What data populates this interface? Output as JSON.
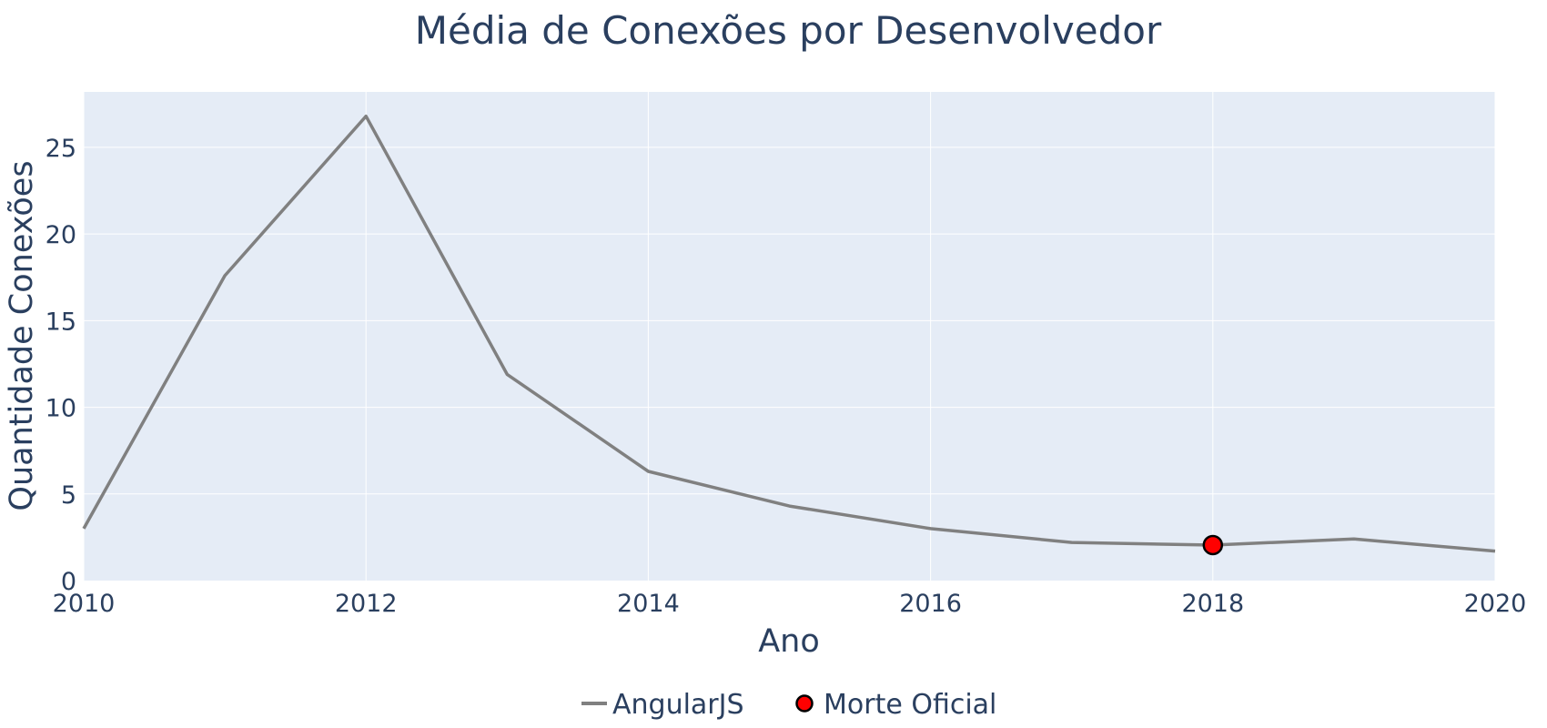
{
  "chart_data": {
    "type": "line",
    "title": "Média de Conexões por Desenvolvedor",
    "xlabel": "Ano",
    "ylabel": "Quantidade Conexões",
    "xlim": [
      2010,
      2020
    ],
    "ylim": [
      0,
      28.2
    ],
    "x_ticks": [
      2010,
      2012,
      2014,
      2016,
      2018,
      2020
    ],
    "y_ticks": [
      0,
      5,
      10,
      15,
      20,
      25
    ],
    "grid": true,
    "legend_position": "bottom-center",
    "series": [
      {
        "name": "AngularJS",
        "mode": "lines",
        "color": "#808080",
        "x": [
          2010,
          2011,
          2012,
          2013,
          2014,
          2015,
          2016,
          2017,
          2018,
          2019,
          2020
        ],
        "y": [
          3.0,
          17.6,
          26.8,
          11.9,
          6.3,
          4.3,
          3.0,
          2.2,
          2.05,
          2.4,
          1.7
        ]
      },
      {
        "name": "Morte Oficial",
        "mode": "markers",
        "color": "#ff0000",
        "x": [
          2018
        ],
        "y": [
          2.05
        ]
      }
    ]
  },
  "colors": {
    "plot_background": "#e5ecf6",
    "grid": "#ffffff",
    "text": "#2a3f5f",
    "marker_outline": "#000000"
  }
}
